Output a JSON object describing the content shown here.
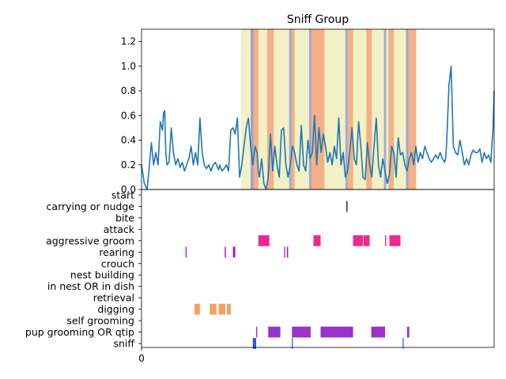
{
  "chart_data": [
    {
      "type": "line",
      "title": "Sniff Group",
      "xlabel": "",
      "ylabel": "",
      "ylim": [
        0,
        1.3
      ],
      "xlim": [
        0,
        640
      ],
      "yticks": [
        0.0,
        0.2,
        0.4,
        0.6,
        0.8,
        1.0,
        1.2
      ],
      "ytick_labels": [
        "0.0",
        "0.2",
        "0.4",
        "0.6",
        "0.8",
        "1.0",
        "1.2"
      ],
      "series": [
        {
          "color": "#1f77b4",
          "x": [
            0,
            5,
            10,
            14,
            18,
            22,
            26,
            30,
            34,
            38,
            40,
            42,
            44,
            46,
            50,
            54,
            58,
            62,
            66,
            70,
            74,
            78,
            82,
            86,
            90,
            94,
            98,
            102,
            106,
            110,
            114,
            118,
            122,
            126,
            130,
            134,
            138,
            140,
            142,
            146,
            150,
            154,
            158,
            162,
            166,
            170,
            174,
            178,
            182,
            186,
            190,
            194,
            198,
            202,
            206,
            210,
            212,
            214,
            218,
            222,
            226,
            230,
            234,
            238,
            242,
            246,
            250,
            254,
            258,
            262,
            266,
            270,
            274,
            278,
            282,
            286,
            290,
            294,
            298,
            302,
            306,
            310,
            314,
            318,
            322,
            326,
            330,
            334,
            338,
            342,
            346,
            350,
            354,
            358,
            362,
            366,
            370,
            374,
            378,
            382,
            386,
            390,
            394,
            398,
            402,
            406,
            410,
            414,
            418,
            422,
            426,
            430,
            434,
            438,
            442,
            446,
            450,
            454,
            458,
            462,
            466,
            470,
            474,
            478,
            482,
            486,
            490,
            494,
            498,
            502,
            506,
            510,
            514,
            518,
            522,
            526,
            530,
            534,
            538,
            542,
            546,
            550,
            552,
            554,
            558,
            562,
            566,
            570,
            574,
            578,
            582,
            586,
            590,
            594,
            598,
            602,
            606,
            610,
            614,
            618,
            622,
            626,
            630,
            634,
            638,
            640
          ],
          "y": [
            0.2,
            0.05,
            0.0,
            0.18,
            0.38,
            0.2,
            0.3,
            0.2,
            0.55,
            0.48,
            0.62,
            0.64,
            0.3,
            0.2,
            0.22,
            0.5,
            0.3,
            0.2,
            0.25,
            0.18,
            0.22,
            0.15,
            0.2,
            0.25,
            0.35,
            0.2,
            0.3,
            0.2,
            0.58,
            0.3,
            0.2,
            0.17,
            0.2,
            0.15,
            0.2,
            0.22,
            0.18,
            0.16,
            0.2,
            0.15,
            0.17,
            0.2,
            0.15,
            0.48,
            0.5,
            0.45,
            0.58,
            0.1,
            0.2,
            0.35,
            0.5,
            0.58,
            0.35,
            0.2,
            0.35,
            0.3,
            0.15,
            0.1,
            0.25,
            0.05,
            0.0,
            0.1,
            0.45,
            0.15,
            0.35,
            0.2,
            0.1,
            0.48,
            0.5,
            0.2,
            0.1,
            0.2,
            0.35,
            0.3,
            0.2,
            0.15,
            0.52,
            0.2,
            0.15,
            0.4,
            0.25,
            0.3,
            0.6,
            0.2,
            0.5,
            0.3,
            0.45,
            0.35,
            0.22,
            0.3,
            0.2,
            0.35,
            0.25,
            0.58,
            0.2,
            0.3,
            0.1,
            0.15,
            0.3,
            0.5,
            0.25,
            0.2,
            0.55,
            0.35,
            0.1,
            0.08,
            0.38,
            0.2,
            0.1,
            0.35,
            0.58,
            0.2,
            0.1,
            0.25,
            0.15,
            0.05,
            0.12,
            0.35,
            0.3,
            0.1,
            0.42,
            0.28,
            0.3,
            0.2,
            0.15,
            0.25,
            0.3,
            0.2,
            0.35,
            0.22,
            0.3,
            0.25,
            0.35,
            0.3,
            0.25,
            0.22,
            0.25,
            0.28,
            0.25,
            0.3,
            0.25,
            0.22,
            0.25,
            0.4,
            0.85,
            1.0,
            0.35,
            0.3,
            0.28,
            0.4,
            0.3,
            0.2,
            0.25,
            0.2,
            0.28,
            0.32,
            0.3,
            0.3,
            0.33,
            0.22,
            0.3,
            0.25,
            0.28,
            0.22,
            0.5,
            0.8
          ],
          "line_x_scale": "px"
        }
      ],
      "bands": [
        {
          "x0": 180,
          "x1": 500,
          "color": "#eeeebb"
        },
        {
          "x0": 198,
          "x1": 212,
          "color": "#f4a57a"
        },
        {
          "x0": 228,
          "x1": 240,
          "color": "#f4a57a"
        },
        {
          "x0": 272,
          "x1": 278,
          "color": "#f4a57a"
        },
        {
          "x0": 306,
          "x1": 332,
          "color": "#f4a57a"
        },
        {
          "x0": 374,
          "x1": 384,
          "color": "#f4a57a"
        },
        {
          "x0": 408,
          "x1": 418,
          "color": "#f4a57a"
        },
        {
          "x0": 448,
          "x1": 458,
          "color": "#f4a57a"
        },
        {
          "x0": 482,
          "x1": 498,
          "color": "#f4a57a"
        },
        {
          "x0": 198,
          "x1": 203,
          "color": "#8ea0d8"
        },
        {
          "x0": 268,
          "x1": 272,
          "color": "#8ea0d8"
        },
        {
          "x0": 304,
          "x1": 308,
          "color": "#8ea0d8"
        },
        {
          "x0": 370,
          "x1": 374,
          "color": "#8ea0d8"
        },
        {
          "x0": 440,
          "x1": 444,
          "color": "#8ea0d8"
        },
        {
          "x0": 480,
          "x1": 484,
          "color": "#8ea0d8"
        }
      ]
    },
    {
      "type": "event-raster",
      "xlim": [
        0,
        640
      ],
      "xticks": [
        0
      ],
      "xtick_labels": [
        "0"
      ],
      "categories": [
        "start",
        "carrying or nudge",
        "bite",
        "attack",
        "aggressive groom",
        "rearing",
        "crouch",
        "nest building",
        "in nest OR in dish",
        "retrieval",
        "digging",
        "self grooming",
        "pup grooming OR qtip",
        "sniff"
      ],
      "events": [
        {
          "category": "carrying or nudge",
          "color": "#000000",
          "spans": [
            [
              372,
              373
            ]
          ]
        },
        {
          "category": "aggressive groom",
          "color": "#f0288c",
          "spans": [
            [
              212,
              232
            ],
            [
              312,
              325
            ],
            [
              384,
              402
            ],
            [
              403,
              414
            ],
            [
              442,
              444
            ],
            [
              450,
              470
            ]
          ]
        },
        {
          "category": "rearing",
          "color": "#b000e0",
          "spans": [
            [
              80,
              81
            ],
            [
              151,
              153
            ],
            [
              166,
              170
            ],
            [
              259,
              260
            ],
            [
              264,
              266
            ]
          ]
        },
        {
          "category": "digging",
          "color": "#f4a060",
          "spans": [
            [
              96,
              106
            ],
            [
              124,
              136
            ],
            [
              140,
              152
            ],
            [
              155,
              162
            ]
          ]
        },
        {
          "category": "pup grooming OR qtip",
          "color": "#9933cc",
          "spans": [
            [
              208,
              210
            ],
            [
              230,
              252
            ],
            [
              273,
              307
            ],
            [
              325,
              384
            ],
            [
              417,
              442
            ],
            [
              482,
              486
            ]
          ]
        },
        {
          "category": "sniff",
          "color": "#2255dd",
          "spans": [
            [
              202,
              208
            ],
            [
              273,
              274
            ],
            [
              474,
              475
            ]
          ]
        }
      ]
    }
  ]
}
